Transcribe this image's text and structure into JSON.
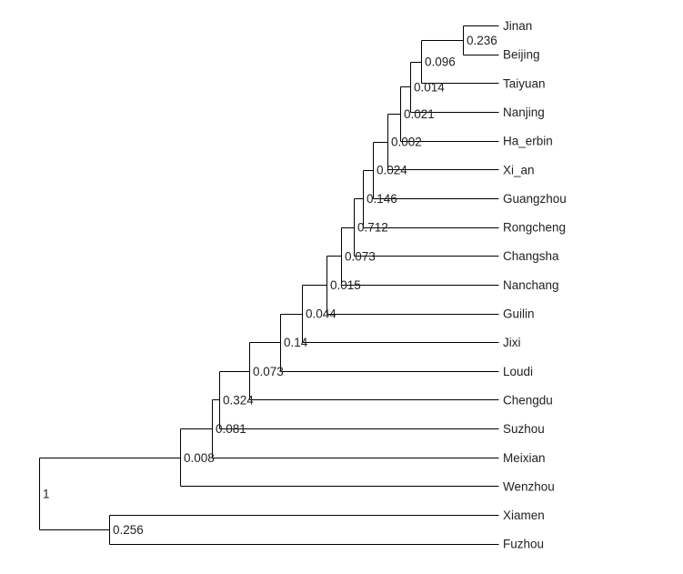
{
  "tree": {
    "type": "dendrogram",
    "leaves": [
      "Jinan",
      "Beijing",
      "Taiyuan",
      "Nanjing",
      "Ha_erbin",
      "Xi_an",
      "Guangzhou",
      "Rongcheng",
      "Changsha",
      "Nanchang",
      "Guilin",
      "Jixi",
      "Loudi",
      "Chengdu",
      "Suzhou",
      "Meixian",
      "Wenzhou",
      "Xiamen",
      "Fuzhou"
    ],
    "nodes": [
      {
        "id": "n_jinan_beijing",
        "label": "0.236",
        "children": [
          "Jinan",
          "Beijing"
        ]
      },
      {
        "id": "n_taiyuan",
        "label": "0.096",
        "children": [
          "n_jinan_beijing",
          "Taiyuan"
        ]
      },
      {
        "id": "n_nanjing",
        "label": "0.014",
        "children": [
          "n_taiyuan",
          "Nanjing"
        ]
      },
      {
        "id": "n_haerbin",
        "label": "0.021",
        "children": [
          "n_nanjing",
          "Ha_erbin"
        ]
      },
      {
        "id": "n_xian",
        "label": "0.002",
        "children": [
          "n_haerbin",
          "Xi_an"
        ]
      },
      {
        "id": "n_guangzhou",
        "label": "0.024",
        "children": [
          "n_xian",
          "Guangzhou"
        ]
      },
      {
        "id": "n_rongcheng",
        "label": "0.146",
        "children": [
          "n_guangzhou",
          "Rongcheng"
        ]
      },
      {
        "id": "n_changsha",
        "label": "0.712",
        "children": [
          "n_rongcheng",
          "Changsha"
        ]
      },
      {
        "id": "n_nanchang",
        "label": "0.073",
        "children": [
          "n_changsha",
          "Nanchang"
        ]
      },
      {
        "id": "n_guilin",
        "label": "0.015",
        "children": [
          "n_nanchang",
          "Guilin"
        ]
      },
      {
        "id": "n_jixi",
        "label": "0.044",
        "children": [
          "n_guilin",
          "Jixi"
        ]
      },
      {
        "id": "n_loudi",
        "label": "0.14",
        "children": [
          "n_jixi",
          "Loudi"
        ]
      },
      {
        "id": "n_chengdu",
        "label": "0.073",
        "children": [
          "n_loudi",
          "Chengdu"
        ]
      },
      {
        "id": "n_suzhou",
        "label": "0.324",
        "children": [
          "n_chengdu",
          "Suzhou"
        ]
      },
      {
        "id": "n_meixian",
        "label": "0.081",
        "children": [
          "n_suzhou",
          "Meixian"
        ]
      },
      {
        "id": "n_wenzhou",
        "label": "0.008",
        "children": [
          "n_meixian",
          "Wenzhou"
        ]
      },
      {
        "id": "n_xiamen_fuzhou",
        "label": "0.256",
        "children": [
          "Xiamen",
          "Fuzhou"
        ]
      },
      {
        "id": "root",
        "label": "1",
        "children": [
          "n_wenzhou",
          "n_xiamen_fuzhou"
        ]
      }
    ]
  }
}
